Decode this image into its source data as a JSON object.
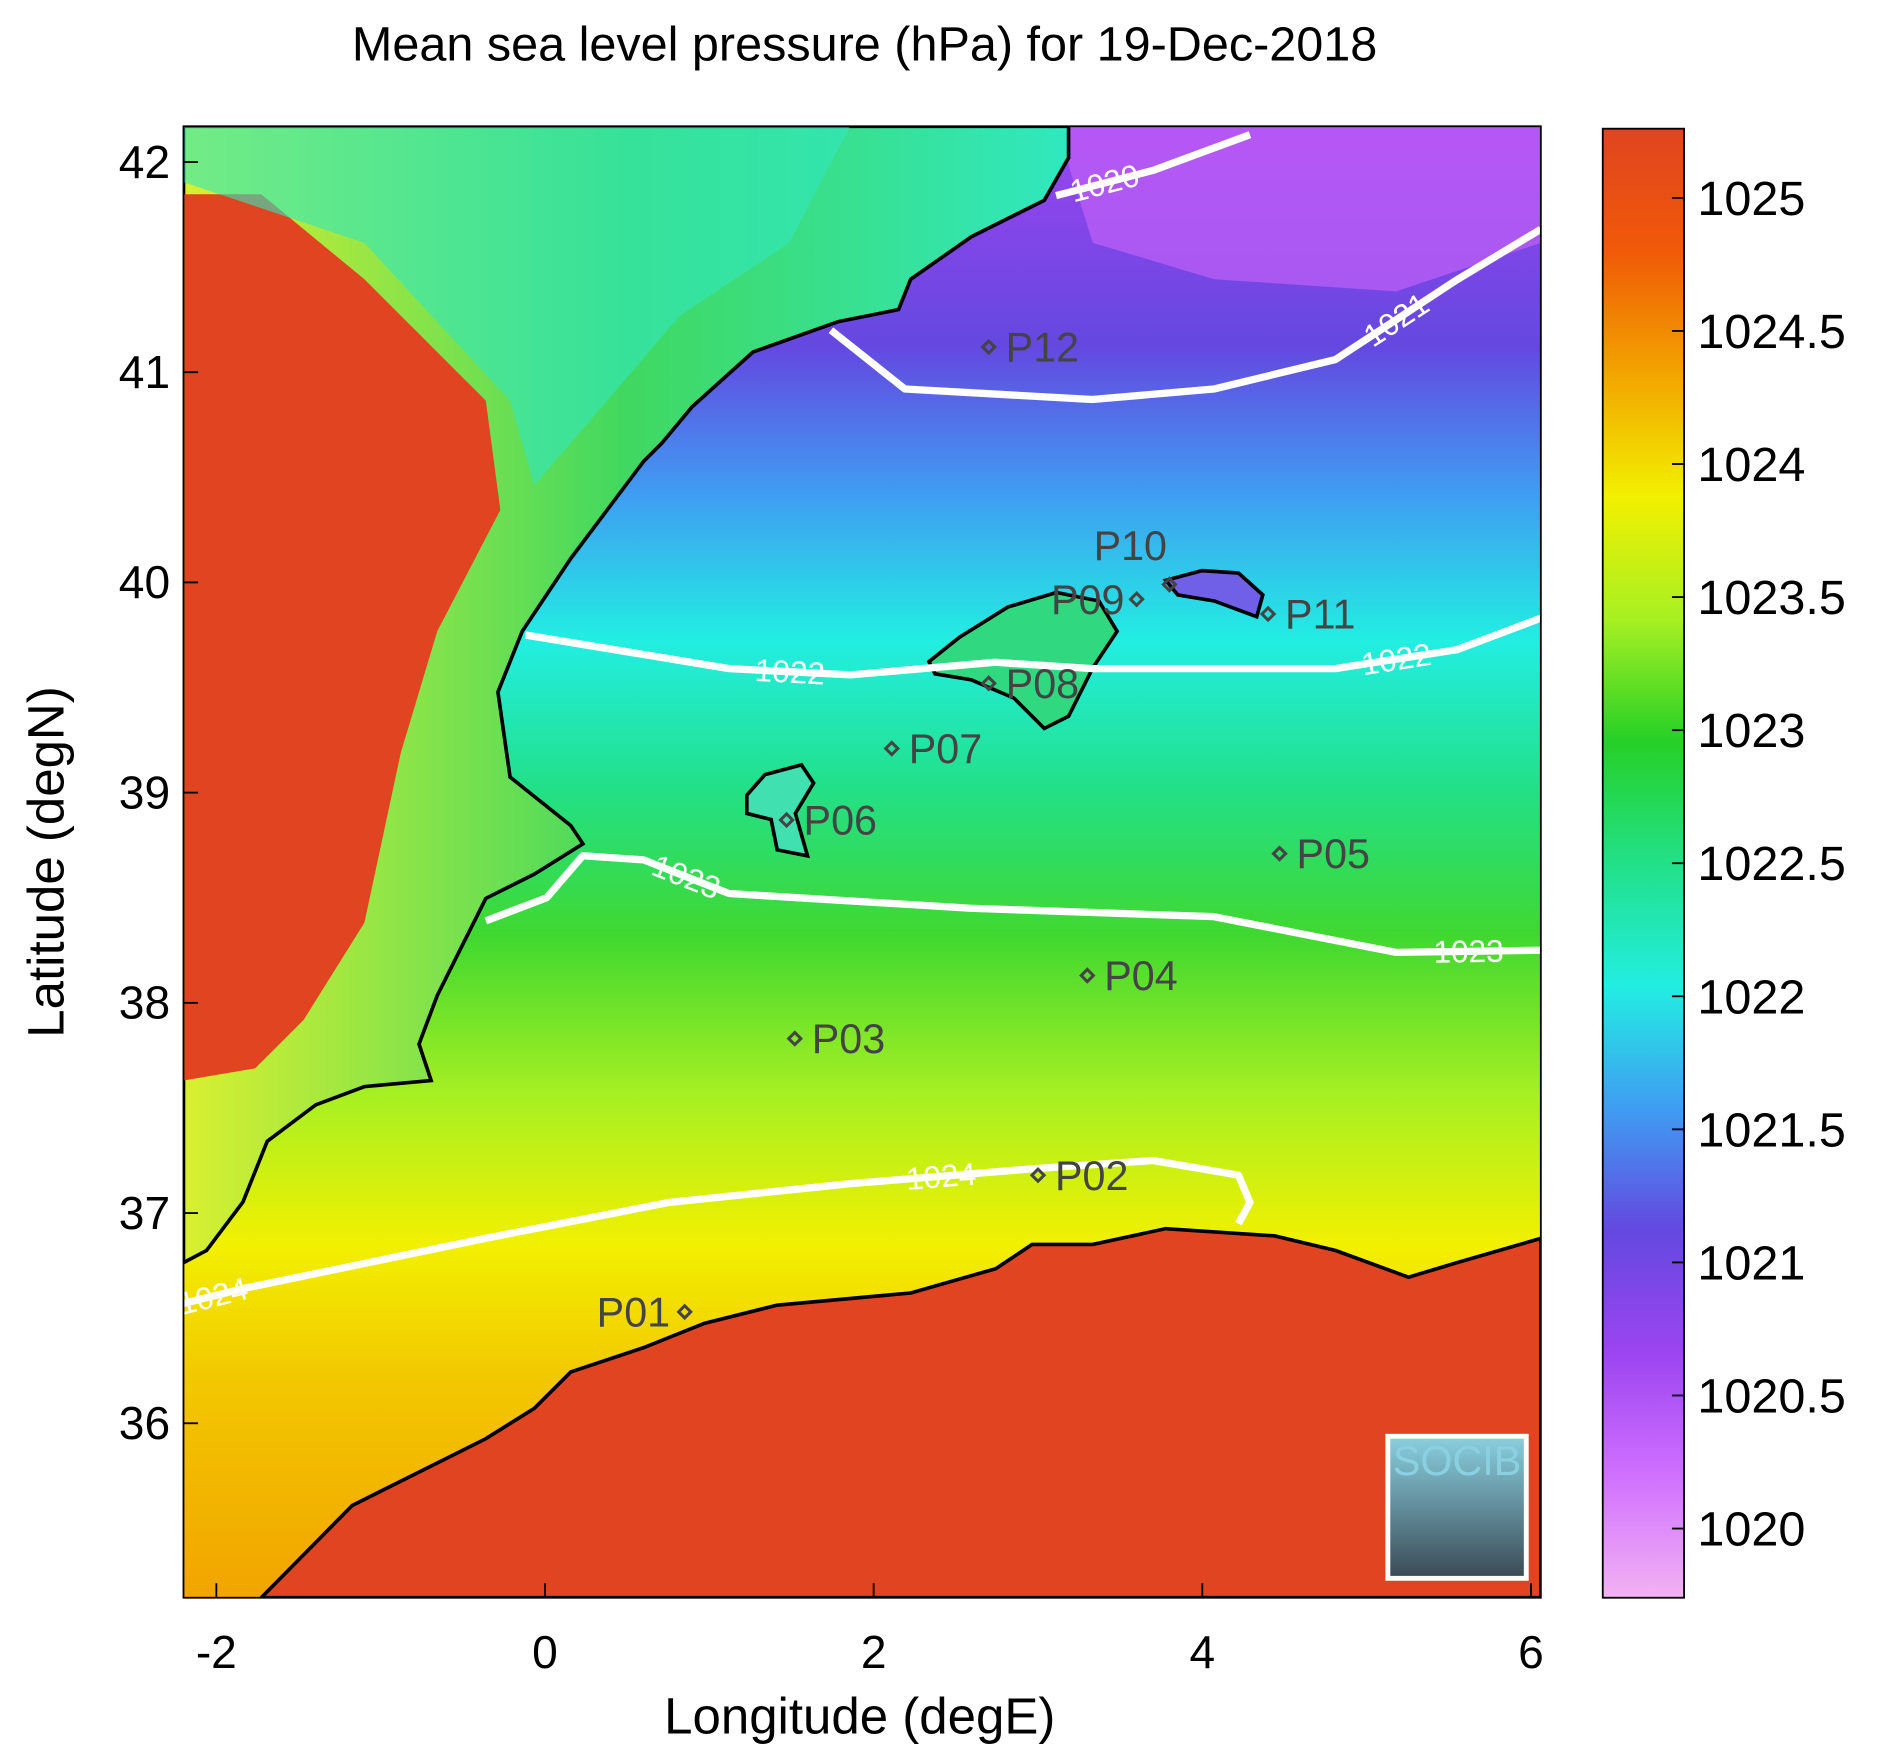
{
  "chart_data": {
    "type": "map",
    "title": "Mean sea level pressure (hPa) for 19-Dec-2018",
    "x_label": "Longitude (degE)",
    "y_label": "Latitude (degN)",
    "xlim": [
      -2.2,
      6.06
    ],
    "ylim": [
      35.17,
      42.17
    ],
    "xticks": [
      -2,
      0,
      2,
      4,
      6
    ],
    "yticks": [
      36,
      37,
      38,
      39,
      40,
      41,
      42
    ],
    "colorbar": {
      "lim": [
        1019.74,
        1025.26
      ],
      "ticks": [
        1020,
        1020.5,
        1021,
        1021.5,
        1022,
        1022.5,
        1023,
        1023.5,
        1024,
        1024.5,
        1025
      ],
      "colors": [
        "#f2b2f2",
        "#d070ff",
        "#9c45f0",
        "#6448e0",
        "#3f9df2",
        "#22eee2",
        "#22e088",
        "#26d026",
        "#a8f022",
        "#f2f000",
        "#f2a400",
        "#f05a08",
        "#e04420"
      ]
    },
    "contours": [
      {
        "level": 1020,
        "lon": [
          3.11,
          3.7,
          4.29
        ],
        "lat": [
          41.84,
          41.96,
          42.13
        ]
      },
      {
        "level": 1021,
        "lon": [
          1.74,
          2.19,
          3.33,
          4.07,
          4.81,
          5.55,
          6.06
        ],
        "lat": [
          41.2,
          40.92,
          40.87,
          40.92,
          41.06,
          41.44,
          41.68
        ]
      },
      {
        "level": 1022,
        "lon": [
          -0.12,
          1.12,
          1.86,
          2.74,
          3.33,
          4.81,
          5.55,
          6.06
        ],
        "lat": [
          39.75,
          39.59,
          39.56,
          39.62,
          39.59,
          39.59,
          39.68,
          39.83
        ]
      },
      {
        "level": 1023,
        "lon": [
          -0.36,
          0.01,
          0.23,
          0.6,
          1.12,
          2.59,
          4.07,
          5.18,
          6.06
        ],
        "lat": [
          38.39,
          38.5,
          38.7,
          38.68,
          38.52,
          38.45,
          38.41,
          38.24,
          38.25
        ]
      },
      {
        "level": 1024,
        "lon": [
          -2.2,
          -1.84,
          -0.36,
          0.75,
          1.86,
          2.96,
          3.7,
          4.22,
          4.29,
          4.22
        ],
        "lat": [
          36.57,
          36.64,
          36.88,
          37.05,
          37.14,
          37.21,
          37.25,
          37.18,
          37.05,
          36.95
        ]
      }
    ],
    "stations": [
      {
        "name": "P01",
        "lon": 0.85,
        "lat": 36.53
      },
      {
        "name": "P02",
        "lon": 3.0,
        "lat": 37.18
      },
      {
        "name": "P03",
        "lon": 1.52,
        "lat": 37.83
      },
      {
        "name": "P04",
        "lon": 3.3,
        "lat": 38.13
      },
      {
        "name": "P05",
        "lon": 4.47,
        "lat": 38.71
      },
      {
        "name": "P06",
        "lon": 1.47,
        "lat": 38.87
      },
      {
        "name": "P07",
        "lon": 2.11,
        "lat": 39.21
      },
      {
        "name": "P08",
        "lon": 2.7,
        "lat": 39.52
      },
      {
        "name": "P09",
        "lon": 3.6,
        "lat": 39.92
      },
      {
        "name": "P10",
        "lon": 3.8,
        "lat": 39.99
      },
      {
        "name": "P11",
        "lon": 4.4,
        "lat": 39.85
      },
      {
        "name": "P12",
        "lon": 2.7,
        "lat": 41.12
      }
    ],
    "logo": "SOCIB"
  }
}
